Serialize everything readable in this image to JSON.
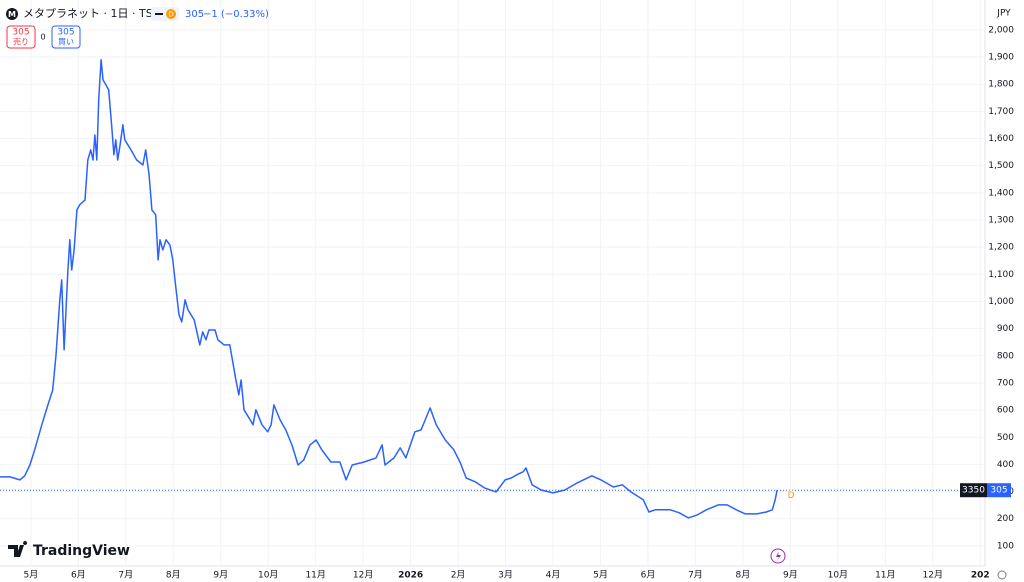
{
  "header": {
    "interval_badge": "D",
    "last": "305",
    "change": "−1 (−0.33%)",
    "sell": "305",
    "sell_label": "売り",
    "spread": "0",
    "buy": "305",
    "buy_label": "買い",
    "currency": "JPY",
    "countdown": "3350",
    "price_label": "305",
    "marker_label": "D",
    "logo": "TradingView"
  },
  "chart_data": {
    "type": "line",
    "title": "メタプラネット · 1日 · TSE",
    "x": [
      4.35,
      4.56,
      4.77,
      4.87,
      4.98,
      5.08,
      5.23,
      5.36,
      5.46,
      5.53,
      5.61,
      5.65,
      5.7,
      5.78,
      5.82,
      5.86,
      5.91,
      5.97,
      6.03,
      6.14,
      6.2,
      6.26,
      6.31,
      6.35,
      6.39,
      6.43,
      6.48,
      6.52,
      6.64,
      6.71,
      6.75,
      6.79,
      6.83,
      6.88,
      6.94,
      6.98,
      7.11,
      7.23,
      7.36,
      7.42,
      7.49,
      7.55,
      7.63,
      7.68,
      7.72,
      7.78,
      7.85,
      7.93,
      7.99,
      8.06,
      8.12,
      8.18,
      8.25,
      8.31,
      8.44,
      8.56,
      8.62,
      8.69,
      8.75,
      8.88,
      8.94,
      9.07,
      9.19,
      9.32,
      9.38,
      9.43,
      9.49,
      9.62,
      9.68,
      9.74,
      9.87,
      9.99,
      10.06,
      10.12,
      10.25,
      10.37,
      10.5,
      10.63,
      10.75,
      10.88,
      11.01,
      11.13,
      11.32,
      11.51,
      11.64,
      11.77,
      12.02,
      12.27,
      12.4,
      12.46,
      12.65,
      12.78,
      12.9,
      13.09,
      13.22,
      13.35,
      13.41,
      13.54,
      13.73,
      13.91,
      14.04,
      14.17,
      14.36,
      14.55,
      14.8,
      14.99,
      15.12,
      15.24,
      15.37,
      15.43,
      15.56,
      15.75,
      16.0,
      16.25,
      16.51,
      16.82,
      17.01,
      17.27,
      17.46,
      17.64,
      17.9,
      18.02,
      18.15,
      18.28,
      18.47,
      18.66,
      18.85,
      19.04,
      19.23,
      19.48,
      19.67,
      19.86,
      20.05,
      20.3,
      20.49,
      20.62,
      20.68,
      20.72
    ],
    "series": [
      {
        "name": "メタプラネット",
        "color": "#2962ff",
        "values": [
          354,
          354,
          343,
          358,
          398,
          454,
          546,
          619,
          674,
          803,
          1006,
          1079,
          822,
          1116,
          1227,
          1116,
          1190,
          1337,
          1356,
          1374,
          1521,
          1558,
          1521,
          1613,
          1521,
          1742,
          1890,
          1816,
          1779,
          1632,
          1540,
          1595,
          1521,
          1577,
          1650,
          1595,
          1558,
          1521,
          1503,
          1558,
          1466,
          1337,
          1319,
          1153,
          1227,
          1190,
          1227,
          1208,
          1153,
          1043,
          951,
          925,
          1006,
          969,
          932,
          840,
          888,
          859,
          895,
          895,
          859,
          840,
          840,
          711,
          656,
          711,
          601,
          564,
          546,
          601,
          546,
          520,
          546,
          619,
          564,
          527,
          472,
          398,
          417,
          472,
          490,
          454,
          409,
          409,
          343,
          398,
          409,
          424,
          472,
          398,
          424,
          461,
          424,
          520,
          527,
          582,
          608,
          546,
          490,
          454,
          409,
          350,
          336,
          314,
          299,
          343,
          350,
          362,
          373,
          387,
          325,
          306,
          295,
          306,
          332,
          358,
          343,
          317,
          325,
          299,
          270,
          225,
          233,
          233,
          233,
          222,
          203,
          214,
          233,
          251,
          251,
          233,
          218,
          218,
          225,
          233,
          270,
          305
        ]
      }
    ],
    "ylim": [
      26,
      2110
    ],
    "yticks": [
      100,
      200,
      300,
      400,
      500,
      600,
      700,
      800,
      900,
      {
        "value": 1000,
        "label": "1,000"
      },
      {
        "value": 1100,
        "label": "1,100"
      },
      {
        "value": 1200,
        "label": "1,200"
      },
      {
        "value": 1300,
        "label": "1,300"
      },
      {
        "value": 1400,
        "label": "1,400"
      },
      {
        "value": 1500,
        "label": "1,500"
      },
      {
        "value": 1600,
        "label": "1,600"
      },
      {
        "value": 1700,
        "label": "1,700"
      },
      {
        "value": 1800,
        "label": "1,800"
      },
      {
        "value": 1900,
        "label": "1,900"
      },
      {
        "value": 2000,
        "label": "2,000"
      }
    ],
    "xlim": [
      4.35,
      25.1
    ],
    "xticks": [
      {
        "value": 5,
        "label": "5月"
      },
      {
        "value": 6,
        "label": "6月"
      },
      {
        "value": 7,
        "label": "7月"
      },
      {
        "value": 8,
        "label": "8月"
      },
      {
        "value": 9,
        "label": "9月"
      },
      {
        "value": 10,
        "label": "10月"
      },
      {
        "value": 11,
        "label": "11月"
      },
      {
        "value": 12,
        "label": "12月"
      },
      {
        "value": 13,
        "label": "2026"
      },
      {
        "value": 14,
        "label": "2月"
      },
      {
        "value": 15,
        "label": "3月"
      },
      {
        "value": 16,
        "label": "4月"
      },
      {
        "value": 17,
        "label": "5月"
      },
      {
        "value": 18,
        "label": "6月"
      },
      {
        "value": 19,
        "label": "7月"
      },
      {
        "value": 20,
        "label": "8月"
      },
      {
        "value": 21,
        "label": "9月"
      },
      {
        "value": 22,
        "label": "10月"
      },
      {
        "value": 23,
        "label": "11月"
      },
      {
        "value": 24,
        "label": "12月"
      },
      {
        "value": 25,
        "label": "202"
      }
    ],
    "grid": true
  }
}
